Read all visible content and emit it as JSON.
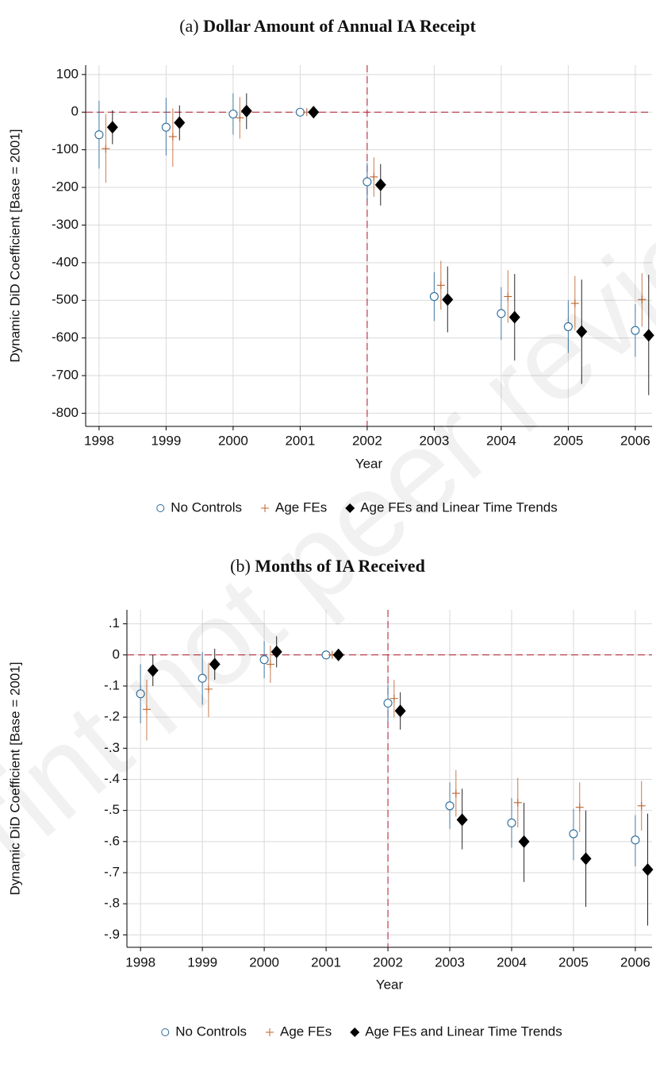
{
  "watermark": "Preprint not peer reviewed",
  "chart_data": [
    {
      "type": "errorbar",
      "panel": "(a)",
      "title": "Dollar Amount of Annual IA Receipt",
      "xlabel": "Year",
      "ylabel": "Dynamic DiD Coefficient [Base = 2001]",
      "x": [
        1998,
        1999,
        2000,
        2001,
        2002,
        2003,
        2004,
        2005,
        2006
      ],
      "xlim": [
        1997.8,
        2006.25
      ],
      "xticks": [
        1998,
        1999,
        2000,
        2001,
        2002,
        2003,
        2004,
        2005,
        2006
      ],
      "ylim": [
        -835,
        125
      ],
      "yticks": [
        100,
        0,
        -100,
        -200,
        -300,
        -400,
        -500,
        -600,
        -700,
        -800
      ],
      "grid": true,
      "ref_x": 2002,
      "ref_y": 0,
      "ref_color": "#b2182b",
      "legend": "bottom",
      "series": [
        {
          "name": "No Controls",
          "color": "#2b6c9c",
          "marker": "circle",
          "values": [
            -60,
            -40,
            -5,
            0,
            -185,
            -490,
            -535,
            -570,
            -580
          ],
          "lower": [
            -150,
            -115,
            -60,
            0,
            -235,
            -555,
            -605,
            -640,
            -650
          ],
          "upper": [
            30,
            38,
            50,
            0,
            -135,
            -425,
            -465,
            -500,
            -510
          ]
        },
        {
          "name": "Age FEs",
          "color": "#c0642e",
          "marker": "plus",
          "values": [
            -97,
            -65,
            -15,
            0,
            -172,
            -460,
            -490,
            -508,
            -498
          ],
          "lower": [
            -188,
            -145,
            -70,
            0,
            -225,
            -525,
            -560,
            -580,
            -570
          ],
          "upper": [
            -5,
            10,
            40,
            0,
            -120,
            -395,
            -420,
            -435,
            -428
          ]
        },
        {
          "name": "Age FEs and Linear Time Trends",
          "color": "#000000",
          "marker": "diamond",
          "values": [
            -40,
            -28,
            3,
            0,
            -193,
            -498,
            -545,
            -583,
            -593
          ],
          "lower": [
            -85,
            -75,
            -45,
            0,
            -248,
            -585,
            -660,
            -722,
            -752
          ],
          "upper": [
            5,
            18,
            50,
            0,
            -138,
            -410,
            -430,
            -445,
            -432
          ]
        }
      ]
    },
    {
      "type": "errorbar",
      "panel": "(b)",
      "title": "Months of IA Received",
      "xlabel": "Year",
      "ylabel": "Dynamic DiD Coefficient [Base = 2001]",
      "x": [
        1998,
        1999,
        2000,
        2001,
        2002,
        2003,
        2004,
        2005,
        2006
      ],
      "xlim": [
        1997.78,
        2006.27
      ],
      "xticks": [
        1998,
        1999,
        2000,
        2001,
        2002,
        2003,
        2004,
        2005,
        2006
      ],
      "ylim": [
        -0.94,
        0.145
      ],
      "yticks": [
        {
          "value": 0.1,
          "label": ".1"
        },
        0,
        {
          "value": -0.1,
          "label": "-.1"
        },
        {
          "value": -0.2,
          "label": "-.2"
        },
        {
          "value": -0.3,
          "label": "-.3"
        },
        {
          "value": -0.4,
          "label": "-.4"
        },
        {
          "value": -0.5,
          "label": "-.5"
        },
        {
          "value": -0.6,
          "label": "-.6"
        },
        {
          "value": -0.7,
          "label": "-.7"
        },
        {
          "value": -0.8,
          "label": "-.8"
        },
        {
          "value": -0.9,
          "label": "-.9"
        }
      ],
      "grid": true,
      "ref_x": 2002,
      "ref_y": 0,
      "ref_color": "#b2182b",
      "legend": "bottom",
      "series": [
        {
          "name": "No Controls",
          "color": "#2b6c9c",
          "marker": "circle",
          "values": [
            -0.125,
            -0.075,
            -0.015,
            0,
            -0.155,
            -0.485,
            -0.54,
            -0.575,
            -0.595
          ],
          "lower": [
            -0.22,
            -0.16,
            -0.075,
            0,
            -0.215,
            -0.56,
            -0.62,
            -0.66,
            -0.68
          ],
          "upper": [
            -0.03,
            0.01,
            0.045,
            0,
            -0.095,
            -0.41,
            -0.46,
            -0.495,
            -0.515
          ]
        },
        {
          "name": "Age FEs",
          "color": "#c0642e",
          "marker": "plus",
          "values": [
            -0.175,
            -0.11,
            -0.03,
            0,
            -0.14,
            -0.445,
            -0.475,
            -0.49,
            -0.485
          ],
          "lower": [
            -0.275,
            -0.2,
            -0.09,
            0,
            -0.2,
            -0.52,
            -0.555,
            -0.57,
            -0.565
          ],
          "upper": [
            -0.08,
            -0.025,
            0.03,
            0,
            -0.08,
            -0.37,
            -0.395,
            -0.41,
            -0.405
          ]
        },
        {
          "name": "Age FEs and Linear Time Trends",
          "color": "#000000",
          "marker": "diamond",
          "values": [
            -0.05,
            -0.03,
            0.01,
            0,
            -0.18,
            -0.53,
            -0.6,
            -0.655,
            -0.69
          ],
          "lower": [
            -0.1,
            -0.08,
            -0.04,
            0,
            -0.24,
            -0.625,
            -0.73,
            -0.81,
            -0.87
          ],
          "upper": [
            0,
            0.02,
            0.06,
            0,
            -0.12,
            -0.43,
            -0.475,
            -0.5,
            -0.51
          ]
        }
      ]
    }
  ]
}
